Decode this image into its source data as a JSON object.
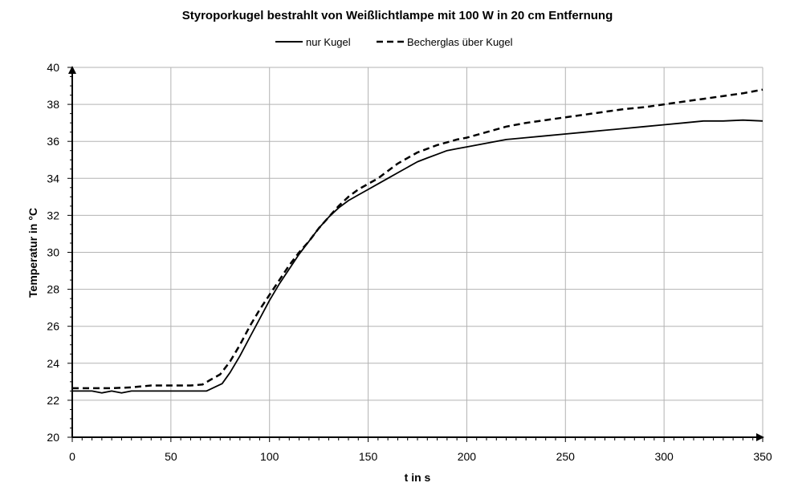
{
  "chart_data": {
    "type": "line",
    "title": "Styroporkugel bestrahlt von Weißlichtlampe mit 100 W in 20 cm Entfernung",
    "xlabel": "t in s",
    "ylabel": "Temperatur in °C",
    "xlim": [
      0,
      350
    ],
    "ylim": [
      20,
      40
    ],
    "x_ticks": [
      0,
      50,
      100,
      150,
      200,
      250,
      300,
      350
    ],
    "y_ticks": [
      20,
      22,
      24,
      26,
      28,
      30,
      32,
      34,
      36,
      38,
      40
    ],
    "grid": true,
    "legend_position": "top-center",
    "series": [
      {
        "name": "nur Kugel",
        "style": "solid",
        "color": "#000000",
        "points": [
          [
            0,
            22.5
          ],
          [
            10,
            22.5
          ],
          [
            15,
            22.4
          ],
          [
            20,
            22.5
          ],
          [
            25,
            22.4
          ],
          [
            30,
            22.5
          ],
          [
            40,
            22.5
          ],
          [
            50,
            22.5
          ],
          [
            60,
            22.5
          ],
          [
            68,
            22.5
          ],
          [
            72,
            22.7
          ],
          [
            76,
            22.9
          ],
          [
            80,
            23.5
          ],
          [
            85,
            24.4
          ],
          [
            90,
            25.4
          ],
          [
            95,
            26.4
          ],
          [
            100,
            27.4
          ],
          [
            105,
            28.3
          ],
          [
            110,
            29.1
          ],
          [
            115,
            29.9
          ],
          [
            120,
            30.6
          ],
          [
            125,
            31.3
          ],
          [
            130,
            31.9
          ],
          [
            135,
            32.4
          ],
          [
            140,
            32.8
          ],
          [
            145,
            33.1
          ],
          [
            150,
            33.4
          ],
          [
            155,
            33.7
          ],
          [
            160,
            34.0
          ],
          [
            165,
            34.3
          ],
          [
            170,
            34.6
          ],
          [
            175,
            34.9
          ],
          [
            180,
            35.1
          ],
          [
            185,
            35.3
          ],
          [
            190,
            35.5
          ],
          [
            195,
            35.6
          ],
          [
            200,
            35.7
          ],
          [
            210,
            35.9
          ],
          [
            220,
            36.1
          ],
          [
            230,
            36.2
          ],
          [
            240,
            36.3
          ],
          [
            250,
            36.4
          ],
          [
            260,
            36.5
          ],
          [
            270,
            36.6
          ],
          [
            280,
            36.7
          ],
          [
            290,
            36.8
          ],
          [
            300,
            36.9
          ],
          [
            310,
            37.0
          ],
          [
            320,
            37.1
          ],
          [
            330,
            37.1
          ],
          [
            340,
            37.15
          ],
          [
            350,
            37.1
          ]
        ]
      },
      {
        "name": "Becherglas über  Kugel",
        "style": "dashed",
        "color": "#000000",
        "points": [
          [
            0,
            22.65
          ],
          [
            10,
            22.65
          ],
          [
            20,
            22.65
          ],
          [
            30,
            22.7
          ],
          [
            40,
            22.8
          ],
          [
            50,
            22.8
          ],
          [
            60,
            22.8
          ],
          [
            66,
            22.85
          ],
          [
            70,
            23.1
          ],
          [
            75,
            23.4
          ],
          [
            80,
            24.1
          ],
          [
            85,
            25.0
          ],
          [
            90,
            26.0
          ],
          [
            95,
            26.9
          ],
          [
            100,
            27.7
          ],
          [
            105,
            28.5
          ],
          [
            110,
            29.3
          ],
          [
            115,
            30.0
          ],
          [
            120,
            30.6
          ],
          [
            125,
            31.3
          ],
          [
            130,
            31.9
          ],
          [
            135,
            32.5
          ],
          [
            140,
            33.0
          ],
          [
            145,
            33.4
          ],
          [
            150,
            33.7
          ],
          [
            155,
            34.0
          ],
          [
            160,
            34.4
          ],
          [
            165,
            34.8
          ],
          [
            170,
            35.1
          ],
          [
            175,
            35.4
          ],
          [
            180,
            35.6
          ],
          [
            185,
            35.8
          ],
          [
            190,
            35.95
          ],
          [
            195,
            36.1
          ],
          [
            200,
            36.2
          ],
          [
            210,
            36.5
          ],
          [
            220,
            36.8
          ],
          [
            230,
            37.0
          ],
          [
            240,
            37.15
          ],
          [
            250,
            37.3
          ],
          [
            260,
            37.45
          ],
          [
            270,
            37.6
          ],
          [
            280,
            37.75
          ],
          [
            290,
            37.85
          ],
          [
            300,
            38.0
          ],
          [
            310,
            38.15
          ],
          [
            320,
            38.3
          ],
          [
            330,
            38.45
          ],
          [
            340,
            38.6
          ],
          [
            350,
            38.8
          ]
        ]
      }
    ]
  }
}
